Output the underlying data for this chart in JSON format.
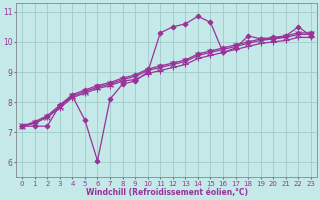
{
  "title": "",
  "xlabel": "Windchill (Refroidissement éolien,°C)",
  "ylabel": "",
  "xlim": [
    -0.5,
    23.5
  ],
  "ylim": [
    5.5,
    11.3
  ],
  "yticks": [
    6,
    7,
    8,
    9,
    10,
    11
  ],
  "xticks": [
    0,
    1,
    2,
    3,
    4,
    5,
    6,
    7,
    8,
    9,
    10,
    11,
    12,
    13,
    14,
    15,
    16,
    17,
    18,
    19,
    20,
    21,
    22,
    23
  ],
  "bg_color": "#c5e8e8",
  "line_color": "#993399",
  "grid_color": "#a0cccc",
  "line_width": 0.9,
  "series": [
    [
      7.2,
      7.2,
      7.2,
      7.9,
      8.2,
      7.4,
      6.05,
      8.1,
      8.6,
      8.7,
      9.0,
      10.3,
      10.5,
      10.6,
      10.85,
      10.65,
      9.65,
      9.8,
      10.2,
      10.1,
      10.1,
      10.2,
      10.5,
      10.2
    ],
    [
      7.2,
      7.3,
      7.5,
      7.8,
      8.15,
      8.3,
      8.45,
      8.55,
      8.7,
      8.75,
      8.95,
      9.05,
      9.15,
      9.25,
      9.45,
      9.55,
      9.65,
      9.75,
      9.85,
      9.95,
      10.0,
      10.05,
      10.15,
      10.15
    ],
    [
      7.2,
      7.3,
      7.5,
      7.85,
      8.2,
      8.35,
      8.5,
      8.6,
      8.75,
      8.85,
      9.05,
      9.15,
      9.25,
      9.35,
      9.55,
      9.65,
      9.75,
      9.85,
      9.95,
      10.05,
      10.1,
      10.15,
      10.25,
      10.25
    ],
    [
      7.2,
      7.35,
      7.55,
      7.9,
      8.25,
      8.4,
      8.55,
      8.65,
      8.8,
      8.9,
      9.1,
      9.2,
      9.3,
      9.4,
      9.6,
      9.7,
      9.8,
      9.9,
      10.0,
      10.1,
      10.15,
      10.2,
      10.3,
      10.3
    ]
  ],
  "markers": [
    "D",
    "+",
    "x",
    "D"
  ],
  "marker_sizes": [
    2.5,
    4,
    4,
    2.5
  ],
  "font_size_tick": 5.0,
  "font_size_label": 5.5
}
